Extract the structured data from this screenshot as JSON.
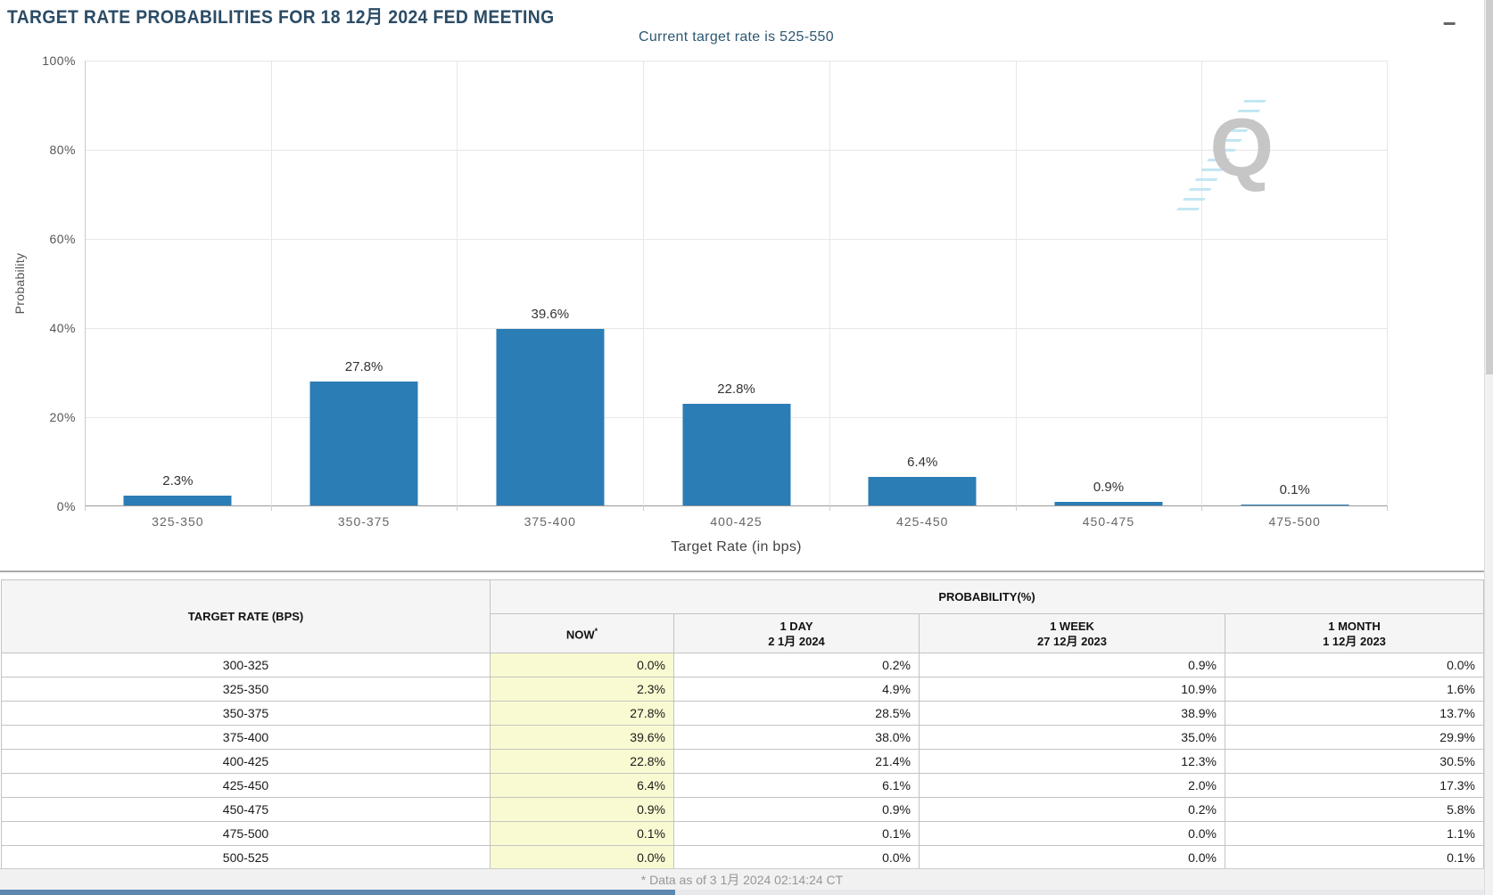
{
  "header": {
    "title": "TARGET RATE PROBABILITIES FOR 18 12月 2024 FED MEETING"
  },
  "colors": {
    "bar": "#2a7db5",
    "now_column_bg": "#fafad2",
    "title": "#2b4c66"
  },
  "chart": {
    "subtitle": "Current target rate is 525-550",
    "y_axis_title": "Probability",
    "x_axis_title": "Target Rate (in bps)",
    "y_ticks": [
      "100%",
      "80%",
      "60%",
      "40%",
      "20%",
      "0%"
    ],
    "watermark_letter": "Q"
  },
  "chart_data": {
    "type": "bar",
    "title": "TARGET RATE PROBABILITIES FOR 18 12月 2024 FED MEETING",
    "subtitle": "Current target rate is 525-550",
    "categories": [
      "325-350",
      "350-375",
      "375-400",
      "400-425",
      "425-450",
      "450-475",
      "475-500"
    ],
    "values": [
      2.3,
      27.8,
      39.6,
      22.8,
      6.4,
      0.9,
      0.1
    ],
    "value_labels": [
      "2.3%",
      "27.8%",
      "39.6%",
      "22.8%",
      "6.4%",
      "0.9%",
      "0.1%"
    ],
    "xlabel": "Target Rate (in bps)",
    "ylabel": "Probability",
    "ylim": [
      0,
      100
    ],
    "ytick_step": 20,
    "grid": true,
    "legend": false,
    "bar_color": "#2a7db5"
  },
  "table": {
    "rate_header": "TARGET RATE (BPS)",
    "group_header": "PROBABILITY(%)",
    "columns": [
      {
        "label": "NOW",
        "sup": "*",
        "sub": ""
      },
      {
        "label": "1 DAY",
        "sup": "",
        "sub": "2 1月 2024"
      },
      {
        "label": "1 WEEK",
        "sup": "",
        "sub": "27 12月 2023"
      },
      {
        "label": "1 MONTH",
        "sup": "",
        "sub": "1 12月 2023"
      }
    ],
    "rows": [
      {
        "rate": "300-325",
        "now": "0.0%",
        "day": "0.2%",
        "week": "0.9%",
        "month": "0.0%"
      },
      {
        "rate": "325-350",
        "now": "2.3%",
        "day": "4.9%",
        "week": "10.9%",
        "month": "1.6%"
      },
      {
        "rate": "350-375",
        "now": "27.8%",
        "day": "28.5%",
        "week": "38.9%",
        "month": "13.7%"
      },
      {
        "rate": "375-400",
        "now": "39.6%",
        "day": "38.0%",
        "week": "35.0%",
        "month": "29.9%"
      },
      {
        "rate": "400-425",
        "now": "22.8%",
        "day": "21.4%",
        "week": "12.3%",
        "month": "30.5%"
      },
      {
        "rate": "425-450",
        "now": "6.4%",
        "day": "6.1%",
        "week": "2.0%",
        "month": "17.3%"
      },
      {
        "rate": "450-475",
        "now": "0.9%",
        "day": "0.9%",
        "week": "0.2%",
        "month": "5.8%"
      },
      {
        "rate": "475-500",
        "now": "0.1%",
        "day": "0.1%",
        "week": "0.0%",
        "month": "1.1%"
      },
      {
        "rate": "500-525",
        "now": "0.0%",
        "day": "0.0%",
        "week": "0.0%",
        "month": "0.1%"
      }
    ]
  },
  "footer": {
    "note": "* Data as of 3 1月 2024 02:14:24 CT"
  }
}
